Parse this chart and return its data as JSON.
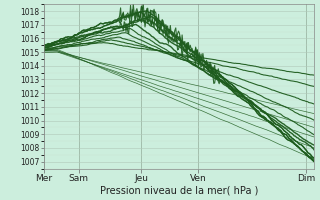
{
  "xlabel": "Pression niveau de la mer( hPa )",
  "ylim": [
    1006.5,
    1018.5
  ],
  "yticks": [
    1007,
    1008,
    1009,
    1010,
    1011,
    1012,
    1013,
    1014,
    1015,
    1016,
    1017,
    1018
  ],
  "xtick_labels": [
    "Mer",
    "Sam",
    "Jeu",
    "Ven",
    "Dim"
  ],
  "xtick_positions": [
    0.0,
    0.13,
    0.36,
    0.57,
    0.97
  ],
  "background_color": "#cceedd",
  "grid_color_major": "#b0c8b8",
  "grid_color_minor": "#c8ddd0",
  "line_color": "#1e5c1e",
  "n_points": 300,
  "xlabel_fontsize": 7,
  "ytick_fontsize": 5.5,
  "xtick_fontsize": 6.5
}
